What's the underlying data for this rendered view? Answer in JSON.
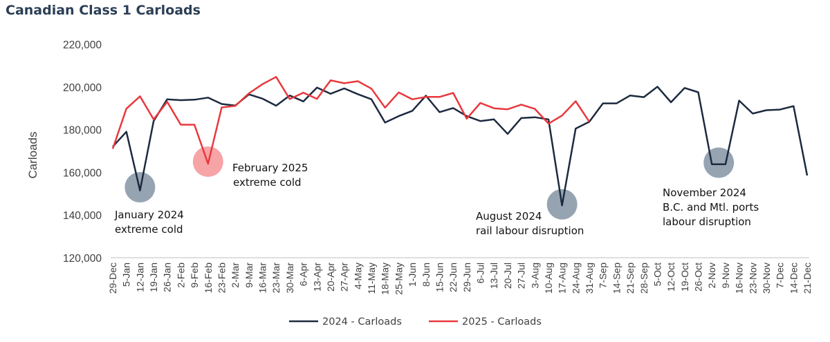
{
  "chart_data": {
    "type": "line",
    "title": "Canadian Class 1 Carloads",
    "ylabel": "Carloads",
    "xlabel": "",
    "ylim": [
      120000,
      220000
    ],
    "yticks": [
      "120,000",
      "140,000",
      "160,000",
      "180,000",
      "200,000",
      "220,000"
    ],
    "grid": false,
    "legend_placement": "bottom",
    "categories": [
      "29-Dec",
      "5-Jan",
      "12-Jan",
      "19-Jan",
      "26-Jan",
      "2-Feb",
      "9-Feb",
      "16-Feb",
      "23-Feb",
      "2-Mar",
      "9-Mar",
      "16-Mar",
      "23-Mar",
      "30-Mar",
      "6-Apr",
      "13-Apr",
      "20-Apr",
      "27-Apr",
      "4-May",
      "11-May",
      "18-May",
      "25-May",
      "1-Jun",
      "8-Jun",
      "15-Jun",
      "22-Jun",
      "29-Jun",
      "6-Jul",
      "13-Jul",
      "20-Jul",
      "27-Jul",
      "3-Aug",
      "10-Aug",
      "17-Aug",
      "24-Aug",
      "31-Aug",
      "7-Sep",
      "14-Sep",
      "21-Sep",
      "28-Sep",
      "5-Oct",
      "12-Oct",
      "19-Oct",
      "26-Oct",
      "2-Nov",
      "9-Nov",
      "16-Nov",
      "23-Nov",
      "30-Nov",
      "7-Dec",
      "14-Dec",
      "21-Dec"
    ],
    "series": [
      {
        "name": "2024 - Carloads",
        "color": "#1c2a3f",
        "values": [
          172000,
          179000,
          151500,
          184000,
          194200,
          193800,
          194000,
          195000,
          192000,
          191300,
          196500,
          194500,
          191200,
          196000,
          193200,
          199700,
          196800,
          199300,
          196600,
          194200,
          183300,
          186300,
          188800,
          195900,
          188200,
          190100,
          186300,
          184000,
          184800,
          178000,
          185400,
          185800,
          184800,
          144500,
          180500,
          183700,
          192300,
          192300,
          196000,
          195200,
          200100,
          192800,
          199500,
          197500,
          163800,
          163800,
          193600,
          187500,
          189100,
          189400,
          191000,
          158500
        ]
      },
      {
        "name": "2025 - Carloads",
        "color": "#e8383d",
        "values": [
          171000,
          189800,
          195600,
          184800,
          193000,
          182300,
          182300,
          164000,
          190400,
          191100,
          197000,
          201300,
          204700,
          194300,
          197300,
          194400,
          203100,
          201700,
          202700,
          199200,
          190300,
          197400,
          194200,
          195300,
          195300,
          197200,
          185100,
          192500,
          190000,
          189500,
          191700,
          189700,
          182800,
          186600,
          193300,
          183700,
          null,
          null,
          null,
          null,
          null,
          null,
          null,
          null,
          null,
          null,
          null,
          null,
          null,
          null,
          null,
          null
        ]
      }
    ],
    "annotations": [
      {
        "lines": [
          "January 2024",
          "extreme cold"
        ],
        "category": "12-Jan",
        "value": 153000,
        "color": "#8b9aaa"
      },
      {
        "lines": [
          "February 2025",
          "extreme cold"
        ],
        "category": "16-Feb",
        "value": 165000,
        "color": "#f59a9c"
      },
      {
        "lines": [
          "August 2024",
          "rail labour disruption"
        ],
        "category": "17-Aug",
        "value": 145000,
        "color": "#8b9aaa"
      },
      {
        "lines": [
          "November 2024",
          "B.C. and Mtl. ports",
          "labour disruption"
        ],
        "category": "2-Nov",
        "value": 164500,
        "color": "#8b9aaa"
      }
    ]
  }
}
